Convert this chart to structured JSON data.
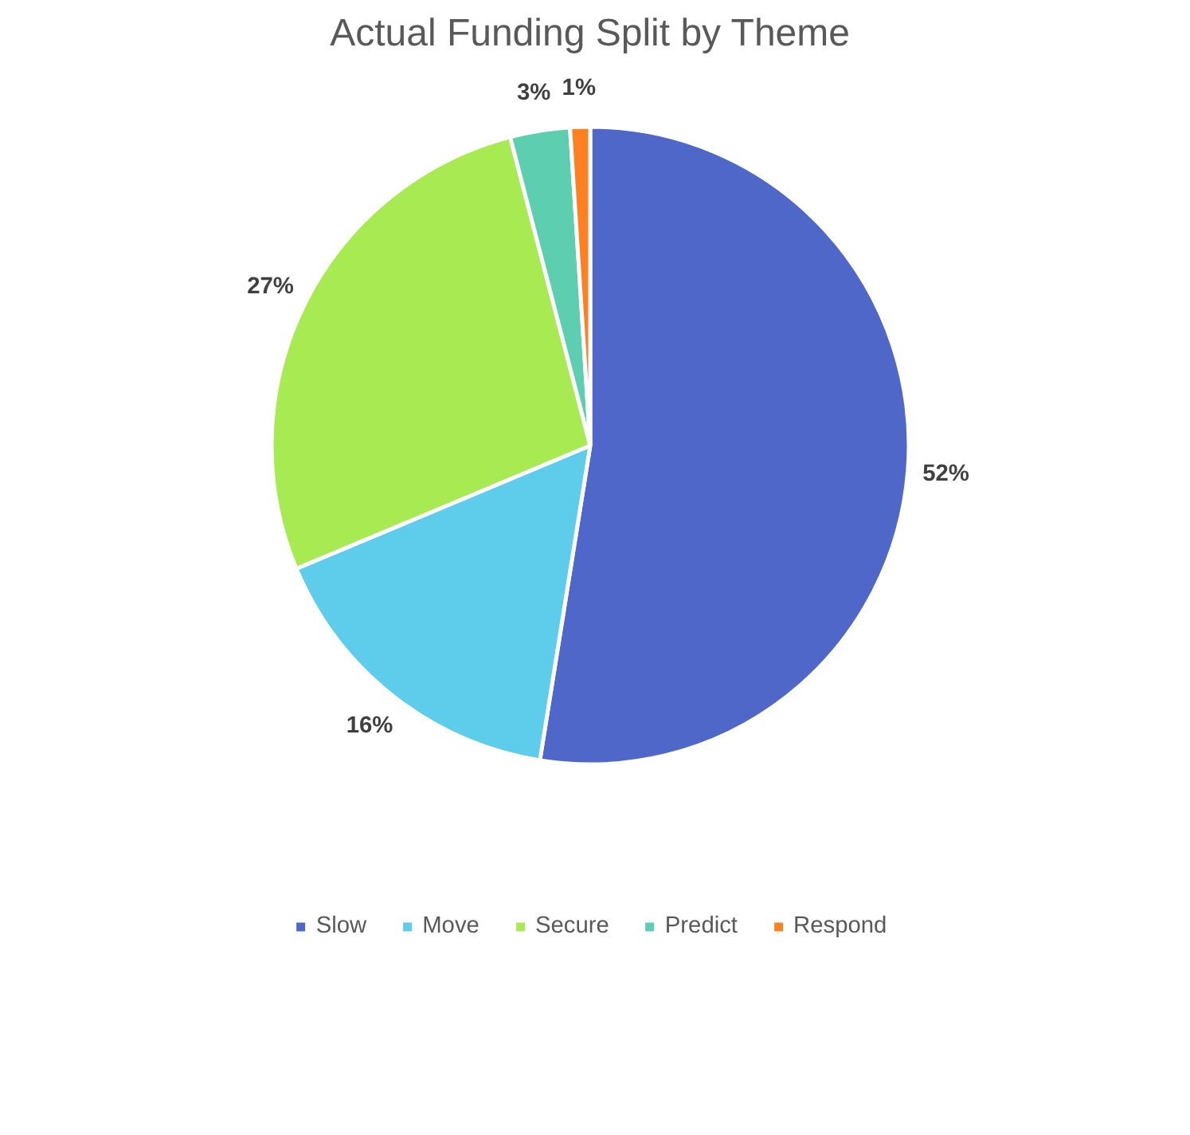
{
  "chart_data": {
    "type": "pie",
    "title": "Actual Funding Split by Theme",
    "categories": [
      "Slow",
      "Move",
      "Secure",
      "Predict",
      "Respond"
    ],
    "values": [
      52,
      16,
      27,
      3,
      1
    ],
    "value_labels": [
      "52%",
      "16%",
      "27%",
      "3%",
      "1%"
    ],
    "colors": [
      "#4e67c8",
      "#5ecceb",
      "#a7ea52",
      "#5dceaf",
      "#ff8021"
    ],
    "legend": "bottom"
  }
}
